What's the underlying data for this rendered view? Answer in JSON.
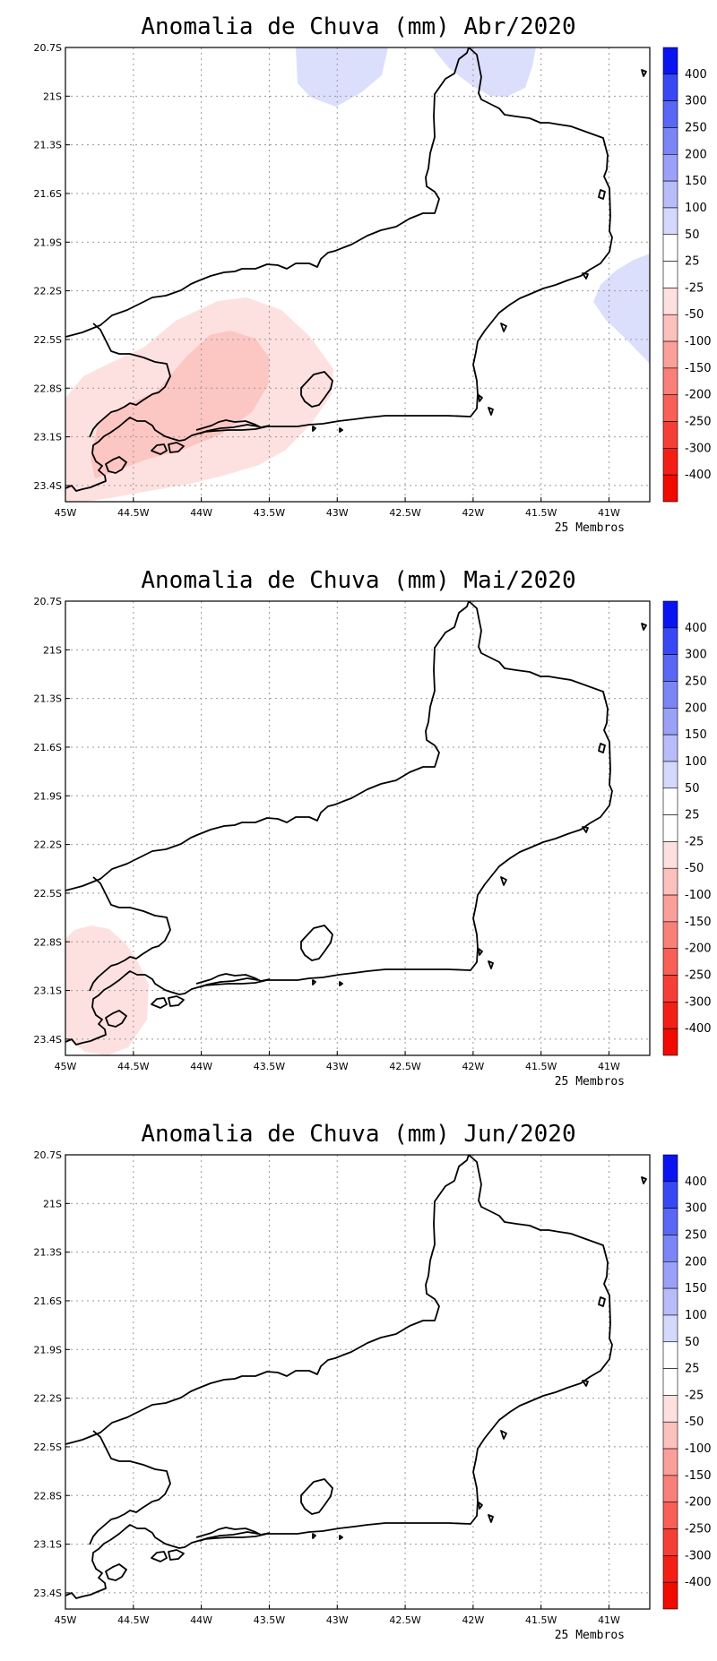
{
  "maps": [
    {
      "title": "Anomalia de Chuva (mm) Abr/2020",
      "members_label": "25 Membros",
      "features": [
        {
          "kind": "pos-25-50",
          "region": "Blue patch north near 43.2W 20.8S"
        },
        {
          "kind": "pos-25-50",
          "region": "Blue patch north near 41.8W 20.8S"
        },
        {
          "kind": "pos-25-50",
          "region": "Blue patch east near 40.8W 22.3S"
        },
        {
          "kind": "neg-25-50",
          "region": "Southwest Rio de Janeiro"
        },
        {
          "kind": "neg-50-100",
          "region": "Costa Verde core"
        }
      ]
    },
    {
      "title": "Anomalia de Chuva (mm) Mai/2020",
      "members_label": "25 Membros",
      "features": [
        {
          "kind": "neg-25-50",
          "region": "Far southwest near 44.8W 23S"
        }
      ]
    },
    {
      "title": "Anomalia de Chuva (mm) Jun/2020",
      "members_label": "25 Membros",
      "features": []
    }
  ],
  "axes": {
    "lat_labels": [
      "20.7S",
      "21S",
      "21.3S",
      "21.6S",
      "21.9S",
      "22.2S",
      "22.5S",
      "22.8S",
      "23.1S",
      "23.4S"
    ],
    "lon_labels": [
      "45W",
      "44.5W",
      "44W",
      "43.5W",
      "43W",
      "42.5W",
      "42W",
      "41.5W",
      "41W"
    ]
  },
  "colorbar": {
    "labels": [
      "400",
      "300",
      "250",
      "200",
      "150",
      "100",
      "50",
      "25",
      "-25",
      "-50",
      "-100",
      "-150",
      "-200",
      "-250",
      "-300",
      "-400"
    ],
    "colors": [
      "#0a14f0",
      "#3848f4",
      "#5a67f5",
      "#7b85f6",
      "#9aa1f7",
      "#b8bdf9",
      "#d4d8fb",
      "#ffffff",
      "#ffffff",
      "#fde0df",
      "#fcc0bd",
      "#fb9f9b",
      "#f97f79",
      "#f75f57",
      "#f53f36",
      "#f31f15",
      "#f00a00"
    ]
  },
  "fill_colors": {
    "pos-25-50": "#dcdffb",
    "neg-25-50": "#fde1e0",
    "neg-50-100": "#fcc6c3"
  }
}
